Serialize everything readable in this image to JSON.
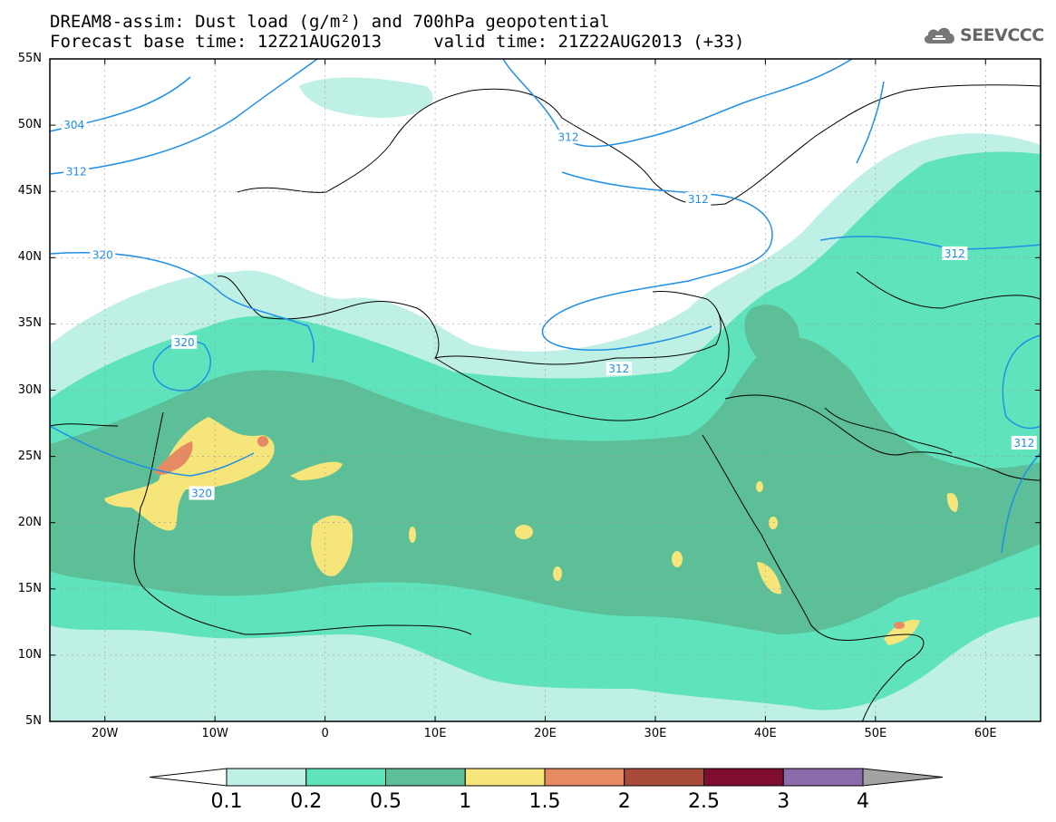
{
  "title_line1": "DREAM8-assim: Dust load (g/m²) and 700hPa geopotential",
  "title_line2": "Forecast base time: 12Z21AUG2013     valid time: 21Z22AUG2013 (+33)",
  "logo_text": "SEEVCCC",
  "lat_ticks": [
    {
      "label": "55N",
      "lat": 55
    },
    {
      "label": "50N",
      "lat": 50
    },
    {
      "label": "45N",
      "lat": 45
    },
    {
      "label": "40N",
      "lat": 40
    },
    {
      "label": "35N",
      "lat": 35
    },
    {
      "label": "30N",
      "lat": 30
    },
    {
      "label": "25N",
      "lat": 25
    },
    {
      "label": "20N",
      "lat": 20
    },
    {
      "label": "15N",
      "lat": 15
    },
    {
      "label": "10N",
      "lat": 10
    },
    {
      "label": "5N",
      "lat": 5
    }
  ],
  "lon_ticks": [
    {
      "label": "20W",
      "lon": -20
    },
    {
      "label": "10W",
      "lon": -10
    },
    {
      "label": "0",
      "lon": 0
    },
    {
      "label": "10E",
      "lon": 10
    },
    {
      "label": "20E",
      "lon": 20
    },
    {
      "label": "30E",
      "lon": 30
    },
    {
      "label": "40E",
      "lon": 40
    },
    {
      "label": "50E",
      "lon": 50
    },
    {
      "label": "60E",
      "lon": 60
    }
  ],
  "extent": {
    "lon_min": -25,
    "lon_max": 65,
    "lat_min": 5,
    "lat_max": 55
  },
  "contour_labels": [
    {
      "text": "304",
      "lon": -22.8,
      "lat": 50
    },
    {
      "text": "312",
      "lon": -22.6,
      "lat": 46.5
    },
    {
      "text": "320",
      "lon": -20.2,
      "lat": 40.2
    },
    {
      "text": "320",
      "lon": -12.8,
      "lat": 33.6
    },
    {
      "text": "320",
      "lon": -11.2,
      "lat": 22.2
    },
    {
      "text": "312",
      "lon": 22.1,
      "lat": 49.1
    },
    {
      "text": "312",
      "lon": 33.9,
      "lat": 44.4
    },
    {
      "text": "312",
      "lon": 57.2,
      "lat": 40.3
    },
    {
      "text": "312",
      "lon": 26.7,
      "lat": 31.6
    },
    {
      "text": "312",
      "lon": 63.5,
      "lat": 26
    }
  ],
  "colorbar": {
    "labels": [
      "0.1",
      "0.2",
      "0.5",
      "1",
      "1.5",
      "2",
      "2.5",
      "3",
      "4"
    ],
    "colors": [
      "#ffffff",
      "#bff0e6",
      "#5fe3bd",
      "#5cbf97",
      "#f5e57a",
      "#e58a63",
      "#a84b3a",
      "#7f0e2e",
      "#8c6bab",
      "#a3a3a3"
    ]
  },
  "colors": {
    "dust_0_1": "#bff0e6",
    "dust_0_2": "#5fe3bd",
    "dust_0_5": "#5cbf97",
    "dust_1": "#f5e57a",
    "dust_1_5": "#e58a63",
    "contour": "#1e90e6",
    "land_border": "#000000"
  }
}
